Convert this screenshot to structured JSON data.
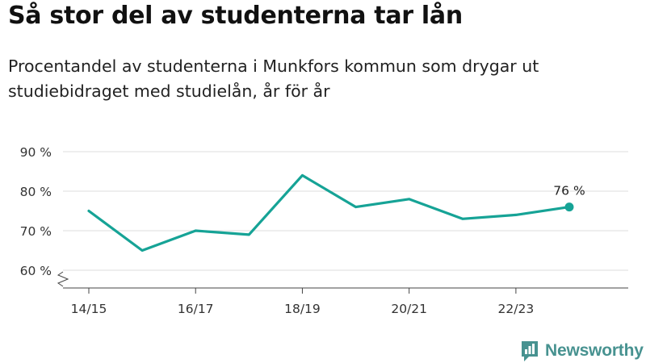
{
  "title": "Så stor del av studenterna tar lån",
  "subtitle": "Procentandel av studenterna i Munkfors kommun som drygar ut studiebidraget med studielån, år för år",
  "brand": {
    "name": "Newsworthy",
    "icon": "newsworthy-logo-icon",
    "color": "#479290"
  },
  "chart_data": {
    "type": "line",
    "x": [
      "14/15",
      "15/16",
      "16/17",
      "17/18",
      "18/19",
      "19/20",
      "20/21",
      "21/22",
      "22/23",
      "23/24"
    ],
    "x_tick_labels": [
      "14/15",
      "16/17",
      "18/19",
      "20/21",
      "22/23"
    ],
    "series": [
      {
        "values": [
          75,
          65,
          70,
          69,
          84,
          76,
          78,
          73,
          74,
          76
        ],
        "color": "#16a396"
      }
    ],
    "y_ticks": [
      60,
      70,
      80,
      90
    ],
    "y_tick_labels": [
      "60 %",
      "70 %",
      "80 %",
      "90 %"
    ],
    "ylim": [
      60,
      90
    ],
    "axis_break": true,
    "grid": true,
    "end_label": "76 %",
    "xlabel": "",
    "ylabel": ""
  }
}
